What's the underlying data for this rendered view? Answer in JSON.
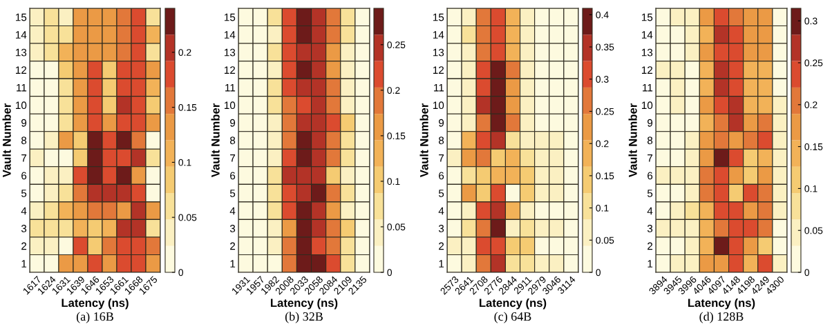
{
  "chart_data": [
    {
      "type": "heatmap",
      "title": "(a) 16B",
      "xlabel": "Latency (ns)",
      "ylabel": "Vault Number",
      "categories": [
        "1617",
        "1624",
        "1631",
        "1639",
        "1646",
        "1653",
        "1661",
        "1668",
        "1675"
      ],
      "y_categories": [
        "15",
        "14",
        "13",
        "12",
        "11",
        "10",
        "9",
        "8",
        "7",
        "6",
        "5",
        "4",
        "3",
        "2",
        "1"
      ],
      "clim": [
        0,
        0.24
      ],
      "cticks": [
        0,
        0.05,
        0.1,
        0.15,
        0.2
      ],
      "cells": [
        [
          0.036,
          0.06,
          0.036,
          0.132,
          0.132,
          0.132,
          0.156,
          0.18,
          0.06
        ],
        [
          0.036,
          0.06,
          0.06,
          0.132,
          0.132,
          0.132,
          0.156,
          0.18,
          0.108
        ],
        [
          0.036,
          0.06,
          0.108,
          0.132,
          0.132,
          0.132,
          0.156,
          0.18,
          0.06
        ],
        [
          0.012,
          0.012,
          0.084,
          0.132,
          0.18,
          0.084,
          0.18,
          0.18,
          0.132
        ],
        [
          0.012,
          0.012,
          0.06,
          0.132,
          0.18,
          0.084,
          0.18,
          0.18,
          0.108
        ],
        [
          0.012,
          0.012,
          0.06,
          0.132,
          0.18,
          0.084,
          0.204,
          0.18,
          0.084
        ],
        [
          0.012,
          0.012,
          0.06,
          0.132,
          0.18,
          0.132,
          0.18,
          0.18,
          0.132
        ],
        [
          0.012,
          0.036,
          0.132,
          0.084,
          0.228,
          0.18,
          0.228,
          0.156,
          0.012
        ],
        [
          0.036,
          0.012,
          0.012,
          0.084,
          0.228,
          0.18,
          0.18,
          0.204,
          0.06
        ],
        [
          0.012,
          0.036,
          0.036,
          0.18,
          0.228,
          0.18,
          0.228,
          0.132,
          0.012
        ],
        [
          0.012,
          0.036,
          0.06,
          0.156,
          0.204,
          0.204,
          0.204,
          0.18,
          0.012
        ],
        [
          0.036,
          0.06,
          0.108,
          0.132,
          0.156,
          0.156,
          0.132,
          0.204,
          0.132
        ],
        [
          0.06,
          0.06,
          0.06,
          0.108,
          0.084,
          0.108,
          0.204,
          0.204,
          0.06
        ],
        [
          0.036,
          0.036,
          0.012,
          0.18,
          0.084,
          0.156,
          0.18,
          0.18,
          0.156
        ],
        [
          0.012,
          0.012,
          0.132,
          0.132,
          0.18,
          0.132,
          0.18,
          0.18,
          0.132
        ]
      ]
    },
    {
      "type": "heatmap",
      "title": "(b) 32B",
      "xlabel": "Latency (ns)",
      "ylabel": "Vault Number",
      "categories": [
        "1931",
        "1957",
        "1982",
        "2008",
        "2033",
        "2058",
        "2084",
        "2109",
        "2135"
      ],
      "y_categories": [
        "15",
        "14",
        "13",
        "12",
        "11",
        "10",
        "9",
        "8",
        "7",
        "6",
        "5",
        "4",
        "3",
        "2",
        "1"
      ],
      "clim": [
        0,
        0.29
      ],
      "cticks": [
        0,
        0.05,
        0.1,
        0.15,
        0.2,
        0.25
      ],
      "cells": [
        [
          0.015,
          0.015,
          0.073,
          0.218,
          0.276,
          0.247,
          0.189,
          0.073,
          0.015
        ],
        [
          0.015,
          0.015,
          0.044,
          0.218,
          0.276,
          0.247,
          0.189,
          0.073,
          0.015
        ],
        [
          0.015,
          0.015,
          0.073,
          0.218,
          0.247,
          0.247,
          0.16,
          0.044,
          0.015
        ],
        [
          0.015,
          0.015,
          0.044,
          0.218,
          0.276,
          0.247,
          0.16,
          0.044,
          0.015
        ],
        [
          0.015,
          0.015,
          0.073,
          0.218,
          0.247,
          0.247,
          0.189,
          0.044,
          0.015
        ],
        [
          0.015,
          0.015,
          0.073,
          0.189,
          0.218,
          0.247,
          0.189,
          0.044,
          0.015
        ],
        [
          0.015,
          0.015,
          0.044,
          0.189,
          0.247,
          0.247,
          0.218,
          0.102,
          0.015
        ],
        [
          0.015,
          0.015,
          0.044,
          0.189,
          0.276,
          0.247,
          0.189,
          0.073,
          0.015
        ],
        [
          0.015,
          0.015,
          0.044,
          0.218,
          0.276,
          0.247,
          0.189,
          0.073,
          0.015
        ],
        [
          0.015,
          0.015,
          0.073,
          0.247,
          0.247,
          0.247,
          0.102,
          0.044,
          0.015
        ],
        [
          0.015,
          0.015,
          0.073,
          0.218,
          0.247,
          0.276,
          0.189,
          0.073,
          0.015
        ],
        [
          0.015,
          0.015,
          0.073,
          0.218,
          0.276,
          0.247,
          0.16,
          0.044,
          0.015
        ],
        [
          0.015,
          0.015,
          0.044,
          0.16,
          0.276,
          0.247,
          0.189,
          0.102,
          0.015
        ],
        [
          0.015,
          0.015,
          0.044,
          0.189,
          0.276,
          0.218,
          0.189,
          0.073,
          0.015
        ],
        [
          0.015,
          0.015,
          0.015,
          0.189,
          0.276,
          0.276,
          0.218,
          0.073,
          0.015
        ]
      ]
    },
    {
      "type": "heatmap",
      "title": "(c) 64B",
      "xlabel": "Latency (ns)",
      "ylabel": "Vault Number",
      "categories": [
        "2573",
        "2641",
        "2708",
        "2776",
        "2844",
        "2911",
        "2979",
        "3046",
        "3114"
      ],
      "y_categories": [
        "15",
        "14",
        "13",
        "12",
        "11",
        "10",
        "9",
        "8",
        "7",
        "6",
        "5",
        "4",
        "3",
        "2",
        "1"
      ],
      "clim": [
        0,
        0.41
      ],
      "cticks": [
        0,
        0.05,
        0.1,
        0.15,
        0.2,
        0.25,
        0.3,
        0.35,
        0.4
      ],
      "cells": [
        [
          0.02,
          0.062,
          0.267,
          0.308,
          0.185,
          0.062,
          0.02,
          0.02,
          0.02
        ],
        [
          0.02,
          0.103,
          0.267,
          0.308,
          0.185,
          0.062,
          0.02,
          0.02,
          0.02
        ],
        [
          0.02,
          0.062,
          0.267,
          0.308,
          0.185,
          0.062,
          0.02,
          0.02,
          0.02
        ],
        [
          0.02,
          0.062,
          0.308,
          0.39,
          0.267,
          0.062,
          0.02,
          0.02,
          0.02
        ],
        [
          0.02,
          0.062,
          0.308,
          0.39,
          0.226,
          0.062,
          0.02,
          0.02,
          0.02
        ],
        [
          0.02,
          0.062,
          0.349,
          0.39,
          0.226,
          0.062,
          0.02,
          0.02,
          0.02
        ],
        [
          0.02,
          0.062,
          0.267,
          0.39,
          0.267,
          0.062,
          0.02,
          0.02,
          0.02
        ],
        [
          0.02,
          0.185,
          0.308,
          0.349,
          0.103,
          0.062,
          0.062,
          0.062,
          0.02
        ],
        [
          0.062,
          0.226,
          0.267,
          0.144,
          0.185,
          0.103,
          0.062,
          0.062,
          0.02
        ],
        [
          0.02,
          0.103,
          0.144,
          0.185,
          0.185,
          0.144,
          0.062,
          0.062,
          0.02
        ],
        [
          0.02,
          0.226,
          0.144,
          0.308,
          0.02,
          0.144,
          0.062,
          0.062,
          0.02
        ],
        [
          0.02,
          0.062,
          0.308,
          0.349,
          0.185,
          0.062,
          0.02,
          0.02,
          0.02
        ],
        [
          0.02,
          0.103,
          0.267,
          0.39,
          0.062,
          0.103,
          0.062,
          0.062,
          0.02
        ],
        [
          0.062,
          0.062,
          0.308,
          0.308,
          0.144,
          0.144,
          0.02,
          0.02,
          0.02
        ],
        [
          0.02,
          0.062,
          0.267,
          0.349,
          0.103,
          0.103,
          0.062,
          0.062,
          0.02
        ]
      ]
    },
    {
      "type": "heatmap",
      "title": "(d) 128B",
      "xlabel": "Latency (ns)",
      "ylabel": "Vault Number",
      "categories": [
        "3894",
        "3945",
        "3996",
        "4046",
        "4097",
        "4148",
        "4198",
        "4249",
        "4300"
      ],
      "y_categories": [
        "15",
        "14",
        "13",
        "12",
        "11",
        "10",
        "9",
        "8",
        "7",
        "6",
        "5",
        "4",
        "3",
        "2",
        "1"
      ],
      "clim": [
        0,
        0.315
      ],
      "cticks": [
        0,
        0.05,
        0.1,
        0.15,
        0.2,
        0.25,
        0.3
      ],
      "cells": [
        [
          0.016,
          0.047,
          0.047,
          0.173,
          0.236,
          0.205,
          0.173,
          0.173,
          0.016
        ],
        [
          0.016,
          0.016,
          0.047,
          0.142,
          0.268,
          0.236,
          0.173,
          0.173,
          0.016
        ],
        [
          0.016,
          0.016,
          0.047,
          0.173,
          0.236,
          0.236,
          0.173,
          0.173,
          0.016
        ],
        [
          0.047,
          0.047,
          0.016,
          0.142,
          0.268,
          0.236,
          0.142,
          0.142,
          0.016
        ],
        [
          0.016,
          0.047,
          0.016,
          0.142,
          0.268,
          0.236,
          0.142,
          0.142,
          0.016
        ],
        [
          0.016,
          0.047,
          0.016,
          0.173,
          0.236,
          0.268,
          0.142,
          0.142,
          0.047
        ],
        [
          0.016,
          0.016,
          0.016,
          0.142,
          0.205,
          0.268,
          0.173,
          0.205,
          0.047
        ],
        [
          0.016,
          0.016,
          0.047,
          0.173,
          0.205,
          0.173,
          0.205,
          0.236,
          0.047
        ],
        [
          0.016,
          0.016,
          0.047,
          0.173,
          0.299,
          0.236,
          0.11,
          0.142,
          0.047
        ],
        [
          0.047,
          0.047,
          0.047,
          0.205,
          0.236,
          0.173,
          0.11,
          0.173,
          0.047
        ],
        [
          0.016,
          0.016,
          0.047,
          0.205,
          0.236,
          0.11,
          0.236,
          0.205,
          0.047
        ],
        [
          0.016,
          0.047,
          0.079,
          0.142,
          0.236,
          0.236,
          0.173,
          0.205,
          0.047
        ],
        [
          0.047,
          0.047,
          0.047,
          0.142,
          0.205,
          0.236,
          0.236,
          0.205,
          0.016
        ],
        [
          0.016,
          0.016,
          0.047,
          0.142,
          0.299,
          0.236,
          0.173,
          0.11,
          0.016
        ],
        [
          0.016,
          0.047,
          0.047,
          0.173,
          0.173,
          0.236,
          0.142,
          0.236,
          0.047
        ]
      ]
    }
  ]
}
